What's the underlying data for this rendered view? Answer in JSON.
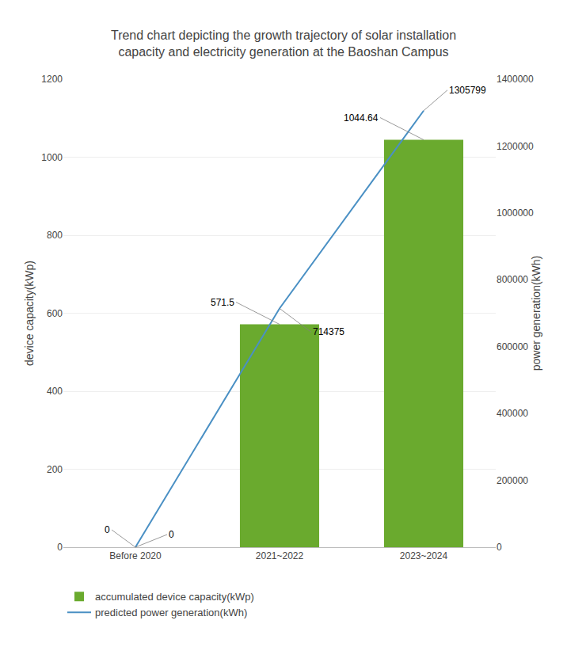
{
  "chart_data": {
    "type": "bar",
    "title": "Trend chart depicting the growth trajectory of solar installation\ncapacity and electricity generation at the Baoshan Campus",
    "categories": [
      "Before 2020",
      "2021~2022",
      "2023~2024"
    ],
    "series": [
      {
        "name": "accumulated device capacity(kWp)",
        "type": "bar",
        "color": "#6aaa2e",
        "values": [
          0,
          571.5,
          1044.64
        ]
      },
      {
        "name": "predicted power generation(kWh)",
        "type": "line",
        "color": "#4a90c4",
        "axis": "y2",
        "values": [
          0,
          714375,
          1305799
        ]
      }
    ],
    "ylabel": "device capacity(kWp)",
    "y2label": "power generation(kWh)",
    "ylim": [
      0,
      1200
    ],
    "yticks": [
      0,
      200,
      400,
      600,
      800,
      1000,
      1200
    ],
    "y2lim": [
      0,
      1400000
    ],
    "y2ticks": [
      0,
      200000,
      400000,
      600000,
      800000,
      1000000,
      1200000,
      1400000
    ],
    "grid": true,
    "legend": "lower left",
    "data_labels": true
  }
}
